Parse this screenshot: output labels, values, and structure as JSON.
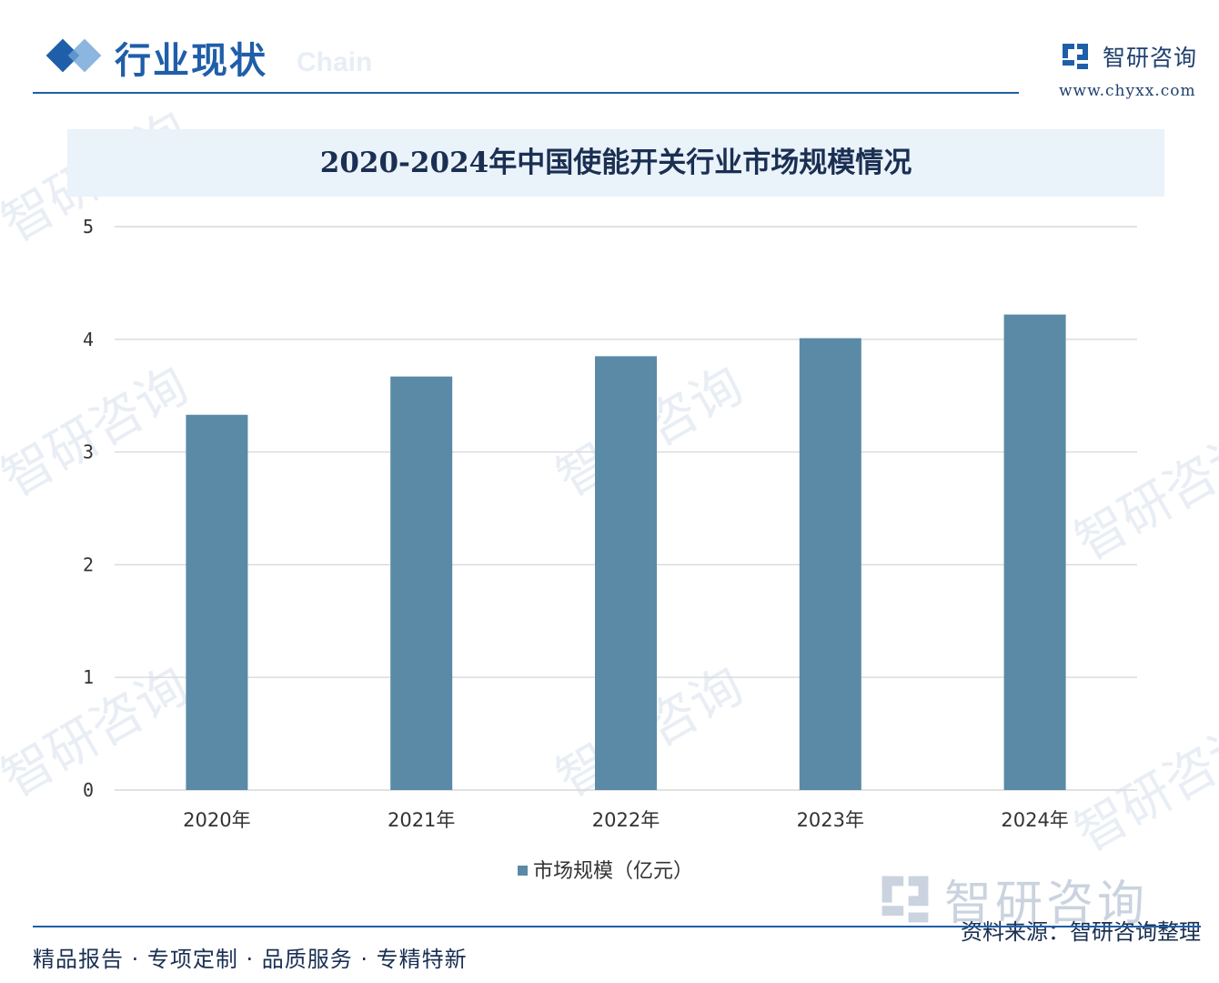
{
  "header": {
    "section_title": "行业现状",
    "ghost_text": "Chain",
    "brand_name": "智研咨询",
    "brand_url": "www.chyxx.com"
  },
  "chart_data": {
    "type": "bar",
    "title": "2020-2024年中国使能开关行业市场规模情况",
    "categories": [
      "2020年",
      "2021年",
      "2022年",
      "2023年",
      "2024年"
    ],
    "series": [
      {
        "name": "市场规模（亿元）",
        "values": [
          3.33,
          3.67,
          3.85,
          4.01,
          4.22
        ]
      }
    ],
    "ylim": [
      0,
      5
    ],
    "yticks": [
      "0",
      "1",
      "2",
      "3",
      "4",
      "5"
    ],
    "grid": true,
    "legend": "bottom",
    "bar_color": "#5a8aa6",
    "grid_color": "#d9d9d9"
  },
  "footer": {
    "left": "精品报告 · 专项定制 · 品质服务 · 专精特新",
    "right": "资料来源：智研咨询整理"
  },
  "watermark": {
    "brand_text": "智研咨询",
    "repeat_text": "智研咨询"
  }
}
